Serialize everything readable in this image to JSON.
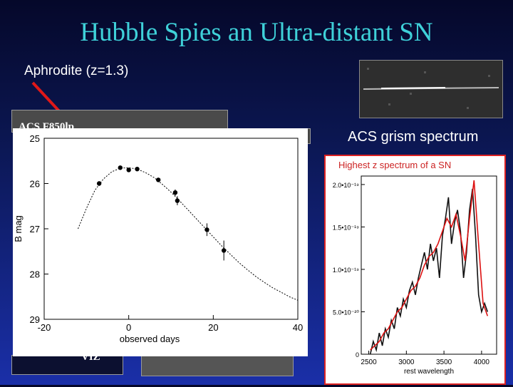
{
  "slide": {
    "title": "Hubble Spies an Ultra-distant SN",
    "subtitle": "Aphrodite (z=1.3)",
    "image_label_top": "ACS F850lp",
    "image_label_bottom": "VIZ",
    "grism_label": "ACS grism spectrum",
    "spectrum_caption": "Highest z spectrum of a SN",
    "arrow_color": "#e01818",
    "title_color": "#3fd1d9"
  },
  "chart_data": [
    {
      "type": "scatter",
      "title": "",
      "xlabel": "observed days",
      "ylabel": "B mag",
      "xlim": [
        -20,
        40
      ],
      "ylim": [
        29,
        25
      ],
      "x_ticks": [
        "-20",
        "0",
        "20",
        "40"
      ],
      "y_ticks": [
        "25",
        "26",
        "27",
        "28",
        "29"
      ],
      "points": [
        {
          "x": -7,
          "y": 26.0,
          "err": 0.05
        },
        {
          "x": -2,
          "y": 25.65,
          "err": 0.04
        },
        {
          "x": 0,
          "y": 25.7,
          "err": 0.04
        },
        {
          "x": 2,
          "y": 25.68,
          "err": 0.04
        },
        {
          "x": 7,
          "y": 25.92,
          "err": 0.05
        },
        {
          "x": 11,
          "y": 26.2,
          "err": 0.07
        },
        {
          "x": 11.5,
          "y": 26.38,
          "err": 0.1
        },
        {
          "x": 18.5,
          "y": 27.02,
          "err": 0.14
        },
        {
          "x": 22.5,
          "y": 27.48,
          "err": 0.22
        }
      ],
      "fit_curve": [
        [
          -12,
          27.0
        ],
        [
          -10,
          26.55
        ],
        [
          -8,
          26.15
        ],
        [
          -6,
          25.9
        ],
        [
          -4,
          25.74
        ],
        [
          -2,
          25.66
        ],
        [
          0,
          25.65
        ],
        [
          2,
          25.68
        ],
        [
          4,
          25.76
        ],
        [
          6,
          25.87
        ],
        [
          8,
          26.02
        ],
        [
          10,
          26.19
        ],
        [
          12,
          26.38
        ],
        [
          14,
          26.58
        ],
        [
          16,
          26.78
        ],
        [
          18,
          26.98
        ],
        [
          20,
          27.18
        ],
        [
          22,
          27.38
        ],
        [
          24,
          27.56
        ],
        [
          26,
          27.74
        ],
        [
          28,
          27.9
        ],
        [
          30,
          28.05
        ],
        [
          32,
          28.18
        ],
        [
          34,
          28.3
        ],
        [
          36,
          28.4
        ],
        [
          38,
          28.5
        ],
        [
          40,
          28.58
        ]
      ],
      "grid": false
    },
    {
      "type": "line",
      "title": "",
      "xlabel": "rest wavelength",
      "ylabel": "",
      "xlim": [
        2400,
        4200
      ],
      "ylim": [
        0,
        2.1e-19
      ],
      "x_ticks": [
        "2500",
        "3000",
        "3500",
        "4000"
      ],
      "y_ticks": [
        "0",
        "5.0•10⁻²⁰",
        "1.0•10⁻¹⁹",
        "1.5•10⁻¹⁹",
        "2.0•10⁻¹⁹"
      ],
      "series": [
        {
          "color": "#111111",
          "x": [
            2520,
            2560,
            2600,
            2640,
            2680,
            2720,
            2760,
            2800,
            2840,
            2880,
            2920,
            2960,
            3000,
            3040,
            3080,
            3120,
            3160,
            3200,
            3240,
            3280,
            3320,
            3360,
            3400,
            3440,
            3480,
            3520,
            3560,
            3600,
            3640,
            3680,
            3720,
            3760,
            3800,
            3840,
            3880,
            3920,
            3960,
            4000,
            4040,
            4080
          ],
          "values": [
            0.0,
            1.5e-20,
            5e-21,
            2.5e-20,
            1e-20,
            3e-20,
            2e-20,
            4e-20,
            3e-20,
            5.5e-20,
            4.5e-20,
            6.5e-20,
            5.5e-20,
            7.5e-20,
            8.5e-20,
            7e-20,
            9e-20,
            1.05e-19,
            1.2e-19,
            1e-19,
            1.3e-19,
            1.1e-19,
            1.25e-19,
            9e-20,
            1.4e-19,
            1.6e-19,
            1.85e-19,
            1.3e-19,
            1.55e-19,
            1.7e-19,
            1.45e-19,
            9e-20,
            1.2e-19,
            1.7e-19,
            1.95e-19,
            1.4e-19,
            7e-20,
            5e-20,
            6e-20,
            5e-20
          ]
        },
        {
          "color": "#dd1111",
          "x": [
            2520,
            2580,
            2640,
            2700,
            2760,
            2820,
            2880,
            2940,
            3000,
            3060,
            3120,
            3180,
            3240,
            3300,
            3360,
            3420,
            3480,
            3540,
            3600,
            3660,
            3720,
            3780,
            3840,
            3900,
            3960,
            4020,
            4080
          ],
          "values": [
            5e-21,
            1e-20,
            1.5e-20,
            2.5e-20,
            3e-20,
            4e-20,
            5e-20,
            5.5e-20,
            6.5e-20,
            7.5e-20,
            8e-20,
            9e-20,
            1.05e-19,
            1.15e-19,
            1.2e-19,
            1.3e-19,
            1.45e-19,
            1.6e-19,
            1.5e-19,
            1.65e-19,
            1.4e-19,
            1.1e-19,
            1.6e-19,
            2.05e-19,
            1.3e-19,
            6e-20,
            4.5e-20
          ]
        }
      ],
      "grid": false
    }
  ]
}
